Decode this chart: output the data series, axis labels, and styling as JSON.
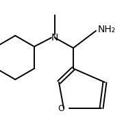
{
  "bg_color": "#ffffff",
  "line_color": "#000000",
  "text_color": "#000000",
  "font_size": 9,
  "nh2_label": "NH₂",
  "n_label": "N",
  "o_label": "O",
  "figsize": [
    2.0,
    1.78
  ],
  "dpi": 100,
  "lw": 1.4
}
